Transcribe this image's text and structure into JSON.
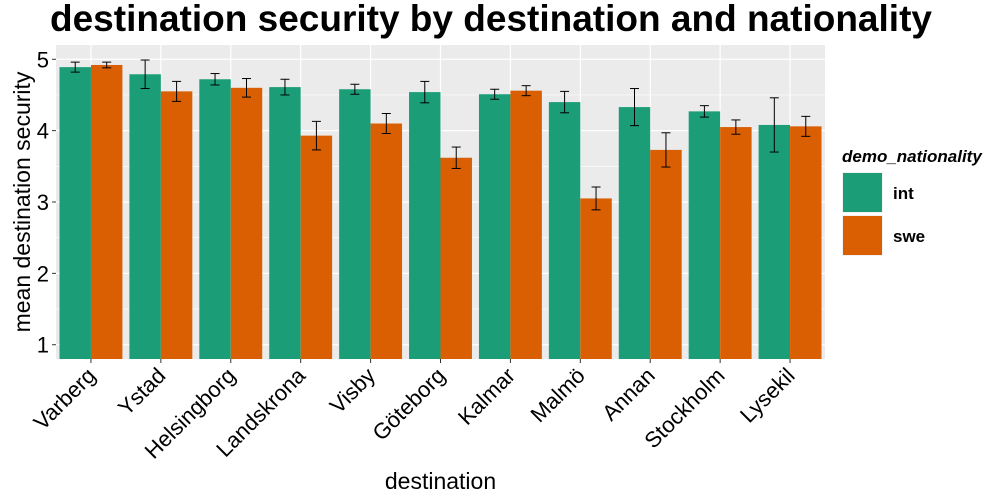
{
  "chart_data": {
    "type": "bar",
    "title": "destination security by destination and nationality",
    "xlabel": "destination",
    "ylabel": "mean destination security",
    "ylim": [
      0.8,
      5.2
    ],
    "yticks": [
      1,
      2,
      3,
      4,
      5
    ],
    "grid": true,
    "legend_position": "right",
    "legend_title": "demo_nationality",
    "categories": [
      "Varberg",
      "Ystad",
      "Helsingborg",
      "Landskrona",
      "Visby",
      "Göteborg",
      "Kalmar",
      "Malmö",
      "Annan",
      "Stockholm",
      "Lysekil"
    ],
    "series": [
      {
        "name": "int",
        "color": "#1b9e77",
        "values": [
          4.89,
          4.79,
          4.72,
          4.61,
          4.58,
          4.54,
          4.51,
          4.4,
          4.33,
          4.27,
          4.08
        ],
        "error": [
          0.07,
          0.2,
          0.08,
          0.11,
          0.07,
          0.15,
          0.07,
          0.15,
          0.26,
          0.08,
          0.38
        ]
      },
      {
        "name": "swe",
        "color": "#d95f02",
        "values": [
          4.92,
          4.55,
          4.6,
          3.93,
          4.1,
          3.62,
          4.56,
          3.05,
          3.73,
          4.05,
          4.06
        ],
        "error": [
          0.04,
          0.14,
          0.13,
          0.2,
          0.14,
          0.15,
          0.07,
          0.16,
          0.24,
          0.1,
          0.14
        ]
      }
    ]
  }
}
